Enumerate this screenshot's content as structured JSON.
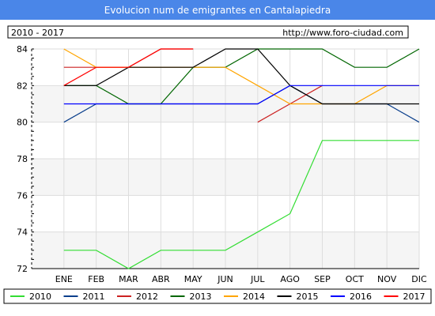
{
  "chart_data": {
    "type": "line",
    "title": "Evolucion num de emigrantes en Cantalapiedra",
    "period": "2010 - 2017",
    "source": "http://www.foro-ciudad.com",
    "categories": [
      "ENE",
      "FEB",
      "MAR",
      "ABR",
      "MAY",
      "JUN",
      "JUL",
      "AGO",
      "SEP",
      "OCT",
      "NOV",
      "DIC"
    ],
    "ylim": [
      72,
      84
    ],
    "yticks": [
      72,
      74,
      76,
      78,
      80,
      82,
      84
    ],
    "grid": true,
    "legend_position": "bottom",
    "series": [
      {
        "name": "2010",
        "color": "#33dd33",
        "values": [
          73,
          73,
          72,
          73,
          73,
          73,
          74,
          75,
          79,
          79,
          79,
          79
        ]
      },
      {
        "name": "2011",
        "color": "#0b3f8c",
        "values": [
          80,
          81,
          81,
          81,
          81,
          81,
          81,
          82,
          81,
          81,
          81,
          80
        ]
      },
      {
        "name": "2012",
        "color": "#cc2222",
        "values": [
          83,
          83,
          83,
          84,
          84,
          null,
          80,
          81,
          82,
          null,
          null,
          null
        ]
      },
      {
        "name": "2013",
        "color": "#006600",
        "values": [
          82,
          82,
          81,
          81,
          83,
          83,
          84,
          84,
          84,
          83,
          83,
          84
        ]
      },
      {
        "name": "2014",
        "color": "#ffa500",
        "values": [
          84,
          83,
          83,
          83,
          83,
          83,
          82,
          81,
          81,
          81,
          82,
          82
        ]
      },
      {
        "name": "2015",
        "color": "#000000",
        "values": [
          82,
          82,
          83,
          83,
          83,
          84,
          84,
          82,
          81,
          81,
          81,
          81
        ]
      },
      {
        "name": "2016",
        "color": "#0000ff",
        "values": [
          81,
          81,
          81,
          81,
          81,
          81,
          81,
          82,
          82,
          82,
          82,
          82
        ]
      },
      {
        "name": "2017",
        "color": "#ff0000",
        "values": [
          82,
          83,
          83,
          84,
          84,
          null,
          null,
          null,
          null,
          null,
          null,
          null
        ]
      }
    ],
    "colors": {
      "header_bg": "#4a86e8",
      "plot_bg_band": "#f5f5f5",
      "grid": "#dddddd",
      "axis": "#000000"
    }
  }
}
